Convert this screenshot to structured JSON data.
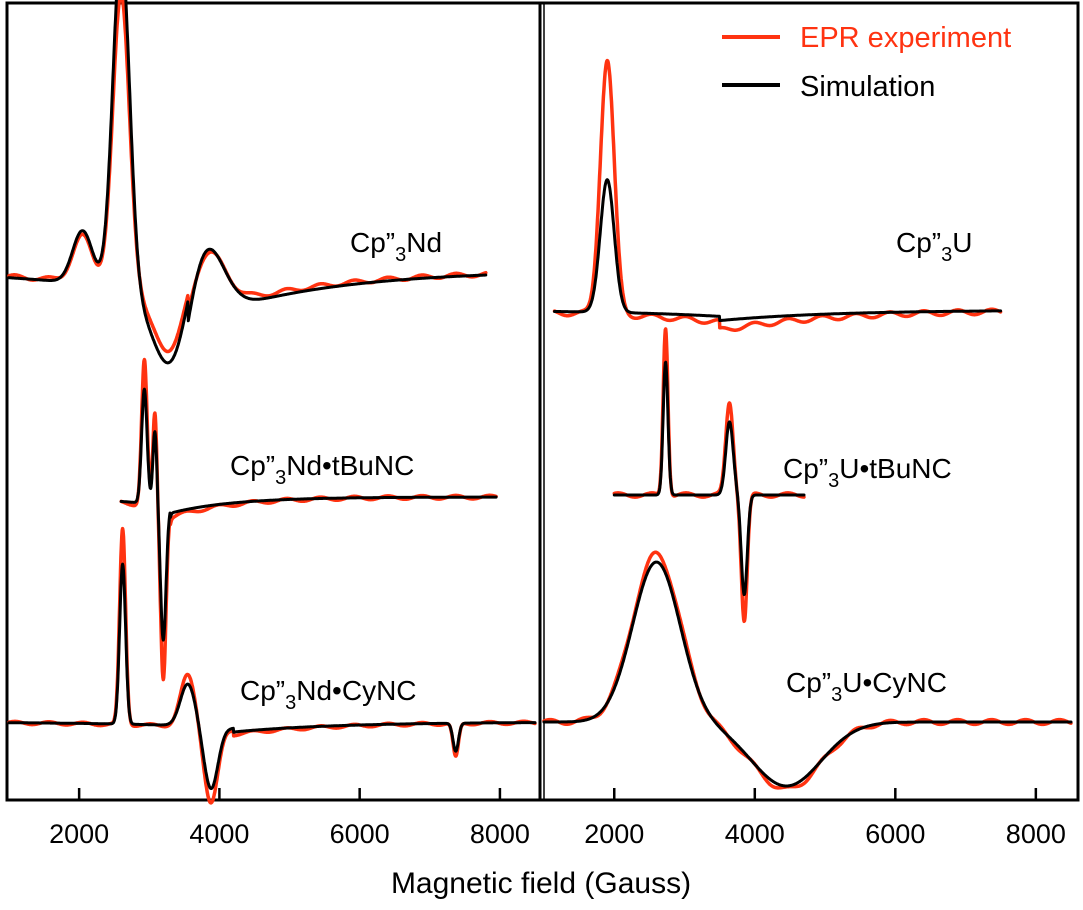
{
  "chart_data": {
    "type": "line",
    "xlabel": "Magnetic field (Gauss)",
    "ylabel": "",
    "xunit": "Gauss",
    "grid": false,
    "legend": {
      "placement": "top-right",
      "entries": [
        {
          "label": "EPR experiment",
          "color": "#ff3311"
        },
        {
          "label": "Simulation",
          "color": "#000000"
        }
      ]
    },
    "colors": {
      "experiment": "#ff3311",
      "simulation": "#000000"
    },
    "panels": [
      {
        "name": "left",
        "xlim": [
          1000,
          8600
        ],
        "xticks": [
          2000,
          4000,
          6000,
          8000
        ],
        "xticklabels": [
          "2000",
          "4000",
          "6000",
          "8000"
        ],
        "spectra": [
          {
            "id": "cp3nd",
            "label_main": "Cp”",
            "label_sub": "3",
            "label_rest": "Nd",
            "baseline": 0,
            "x_range": [
              1000,
              7800
            ],
            "peaks": [
              {
                "kind": "abs",
                "x": 2600,
                "amp": 1.6,
                "width": 170
              },
              {
                "kind": "abs",
                "x": 2050,
                "amp": 0.25,
                "width": 200
              },
              {
                "kind": "deriv",
                "x": 3550,
                "amp": -0.3,
                "width": 420
              },
              {
                "kind": "tail",
                "x": 3550,
                "amp": -0.25,
                "width": 1800
              }
            ],
            "scale_exp": 1.3,
            "scale_sim": 1.52
          },
          {
            "id": "cp3nd_tbunc",
            "label_main": "Cp”",
            "label_sub": "3",
            "label_rest": "Nd•tBuNC",
            "baseline": 0,
            "x_range": [
              2600,
              7950
            ],
            "peaks": [
              {
                "kind": "abs",
                "x": 2930,
                "amp": 0.85,
                "width": 55
              },
              {
                "kind": "abs",
                "x": 3080,
                "amp": 0.55,
                "width": 40
              },
              {
                "kind": "neg",
                "x": 3200,
                "amp": 1.0,
                "width": 55
              },
              {
                "kind": "tail",
                "x": 3300,
                "amp": -0.12,
                "width": 900
              }
            ],
            "scale_exp": 1.42,
            "scale_sim": 1.12
          },
          {
            "id": "cp3nd_cync",
            "label_main": "Cp”",
            "label_sub": "3",
            "label_rest": "Nd•CyNC",
            "baseline": 0,
            "x_range": [
              1000,
              8500
            ],
            "peaks": [
              {
                "kind": "abs",
                "x": 2620,
                "amp": 1.6,
                "width": 60
              },
              {
                "kind": "abs",
                "x": 3550,
                "amp": 0.42,
                "width": 150
              },
              {
                "kind": "neg",
                "x": 3880,
                "amp": 0.62,
                "width": 140
              },
              {
                "kind": "neg",
                "x": 7370,
                "amp": 0.28,
                "width": 55
              },
              {
                "kind": "tail",
                "x": 4200,
                "amp": -0.1,
                "width": 1500
              }
            ],
            "scale_exp": 1.22,
            "scale_sim": 1.0
          }
        ]
      },
      {
        "name": "right",
        "xlim": [
          1000,
          8600
        ],
        "xticks": [
          2000,
          4000,
          6000,
          8000
        ],
        "xticklabels": [
          "2000",
          "4000",
          "6000",
          "8000"
        ],
        "spectra": [
          {
            "id": "cp3u",
            "label_main": "Cp”",
            "label_sub": "3",
            "label_rest": "U",
            "baseline": 0,
            "x_range": [
              1150,
              7500
            ],
            "peaks": [
              {
                "kind": "abs",
                "x": 1900,
                "amp": 1.0,
                "width": 140
              },
              {
                "kind": "tail",
                "x": 3500,
                "amp": -0.08,
                "width": 1600
              }
            ],
            "scale_exp": 1.5,
            "scale_sim": 0.78
          },
          {
            "id": "cp3u_tbunc",
            "label_main": "Cp”",
            "label_sub": "3",
            "label_rest": "U•tBuNC",
            "baseline": 0,
            "x_range": [
              2000,
              4700
            ],
            "peaks": [
              {
                "kind": "abs",
                "x": 2730,
                "amp": 1.0,
                "width": 48
              },
              {
                "kind": "abs",
                "x": 3640,
                "amp": 0.55,
                "width": 75
              },
              {
                "kind": "neg",
                "x": 3850,
                "amp": 0.75,
                "width": 60
              }
            ],
            "scale_exp": 1.2,
            "scale_sim": 0.95
          },
          {
            "id": "cp3u_cync",
            "label_main": "Cp”",
            "label_sub": "3",
            "label_rest": "U•CyNC",
            "baseline": 0,
            "x_range": [
              1000,
              8500
            ],
            "peaks": [
              {
                "kind": "abs",
                "x": 2600,
                "amp": 1.0,
                "width": 480
              },
              {
                "kind": "neg",
                "x": 4450,
                "amp": 0.4,
                "width": 700
              }
            ],
            "scale_exp": 1.05,
            "scale_sim": 1.0
          }
        ]
      }
    ]
  }
}
